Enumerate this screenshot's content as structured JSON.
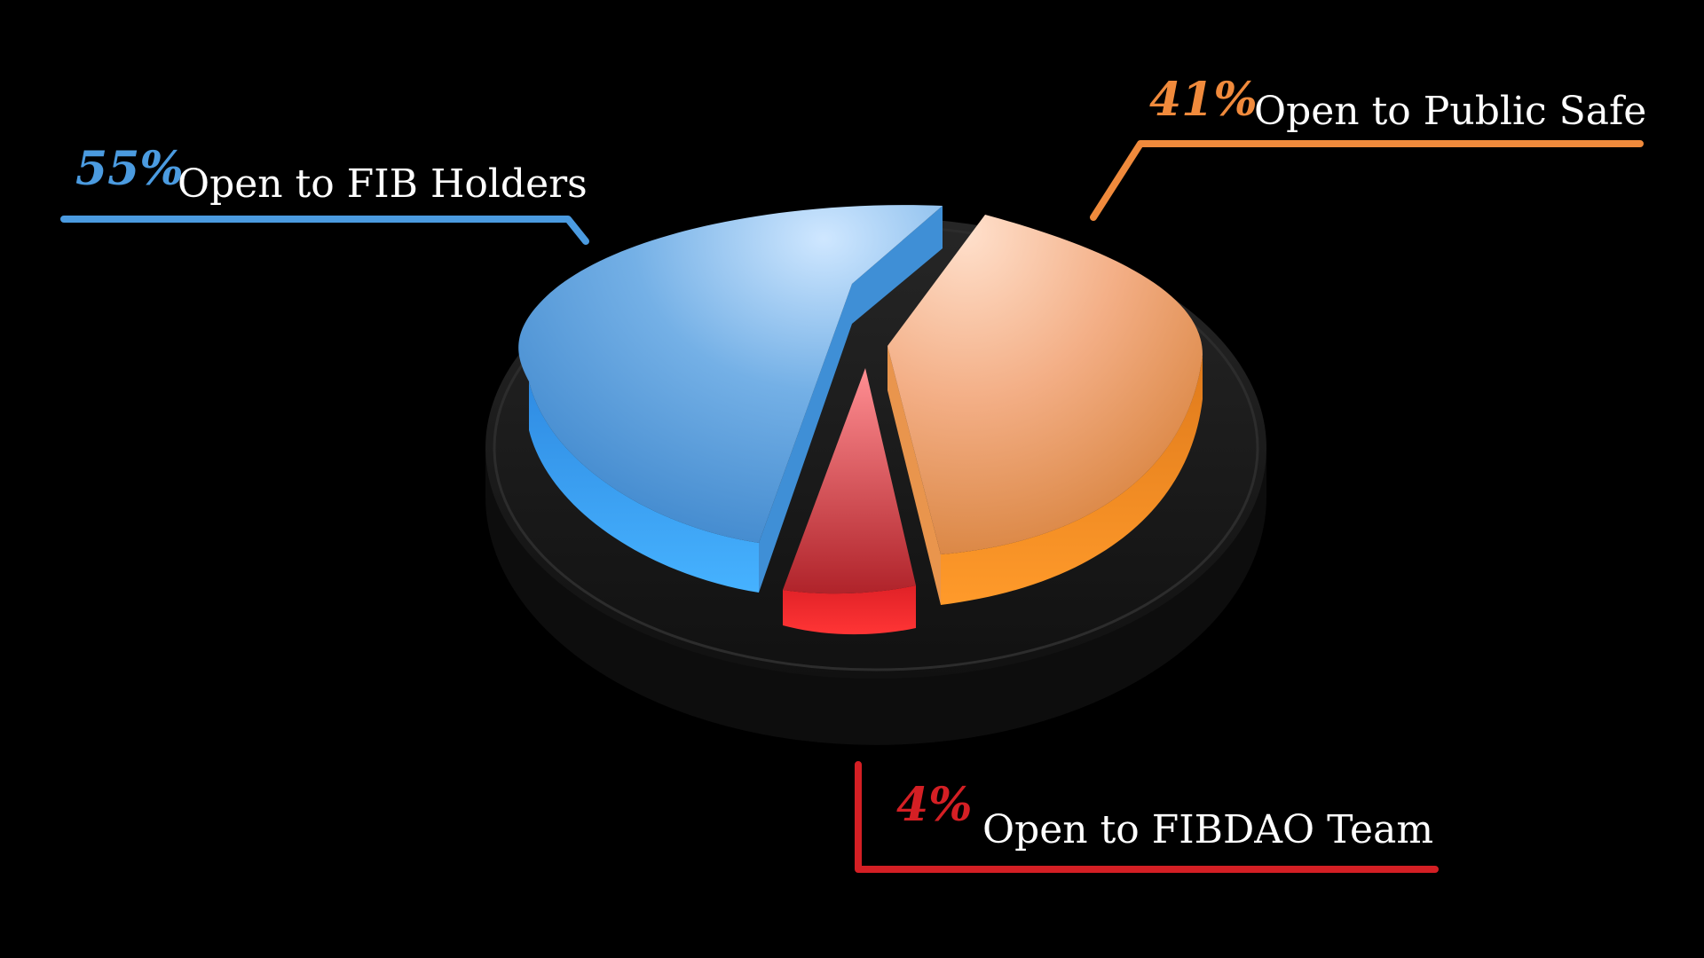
{
  "chart_data": {
    "type": "pie",
    "title": "",
    "slices": [
      {
        "percent_label": "55%",
        "label": "Open to FIB Holders",
        "value": 55,
        "color": "#4b9be0"
      },
      {
        "percent_label": "41%",
        "label": "Open to Public Safe",
        "value": 41,
        "color": "#f08a3c"
      },
      {
        "percent_label": "4%",
        "label": "Open to FIBDAO Team",
        "value": 4,
        "color": "#d41f24"
      }
    ],
    "legend": "callout labels"
  },
  "colors": {
    "background": "#000000",
    "base_disc": "#1b1b1b",
    "blue": "#4b9be0",
    "orange": "#f08a3c",
    "red": "#d41f24",
    "label_text": "#ffffff"
  }
}
